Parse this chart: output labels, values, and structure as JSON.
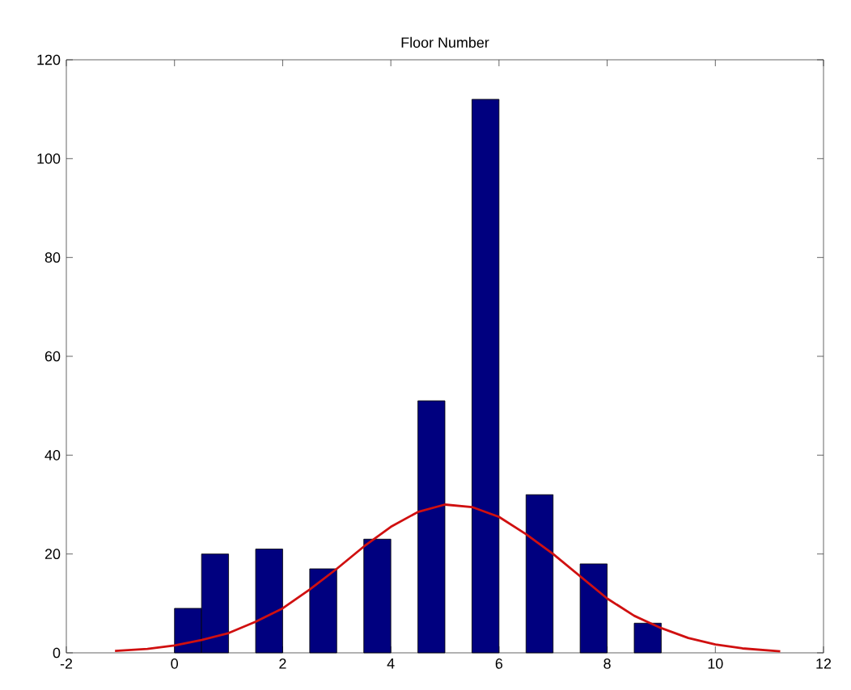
{
  "chart_data": {
    "type": "bar",
    "title": "Floor Number",
    "xlim": [
      -2,
      12
    ],
    "xticks": [
      -2,
      0,
      2,
      4,
      6,
      8,
      10,
      12
    ],
    "ylim": [
      0,
      120
    ],
    "yticks": [
      0,
      20,
      40,
      60,
      80,
      100,
      120
    ],
    "series": [
      {
        "color": "#00007f",
        "x": [
          0.25,
          0.75,
          1.75,
          2.75,
          3.75,
          4.75,
          5.75,
          6.75,
          7.75,
          8.75
        ],
        "values": [
          9,
          20,
          21,
          17,
          23,
          51,
          112,
          32,
          18,
          6
        ]
      },
      {
        "type": "line",
        "color": "#d01010",
        "x": [
          -1.1,
          -0.5,
          0,
          0.5,
          1,
          1.5,
          2,
          2.5,
          3,
          3.5,
          4,
          4.5,
          5,
          5.5,
          6,
          6.5,
          7,
          7.5,
          8,
          8.5,
          9,
          9.5,
          10,
          10.5,
          11.2
        ],
        "values": [
          0.4,
          0.8,
          1.5,
          2.6,
          4,
          6.3,
          9,
          12.8,
          17,
          21.5,
          25.5,
          28.5,
          30,
          29.5,
          27.5,
          24,
          20,
          15.5,
          11,
          7.5,
          5,
          3,
          1.7,
          0.9,
          0.3
        ]
      }
    ]
  }
}
